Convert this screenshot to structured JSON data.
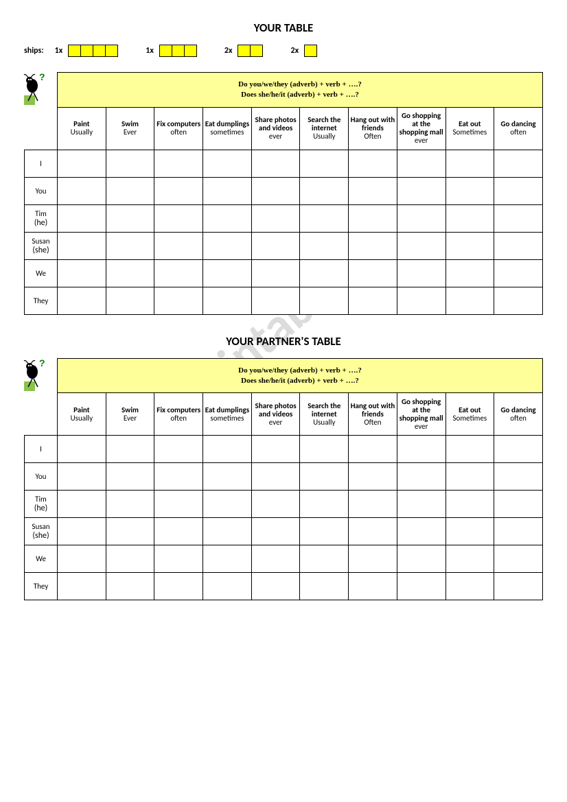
{
  "title1": "YOUR TABLE",
  "title2": "YOUR PARTNER'S TABLE",
  "ships": {
    "label": "ships:",
    "groups": [
      {
        "count": "1x",
        "size": 4
      },
      {
        "count": "1x",
        "size": 3
      },
      {
        "count": "2x",
        "size": 2
      },
      {
        "count": "2x",
        "size": 1
      }
    ]
  },
  "instruction": {
    "line1": "Do you/we/they (adverb) + verb + ….?",
    "line2": "Does she/he/it (adverb) + verb + ….?"
  },
  "columns": [
    {
      "verb": "Paint",
      "adv": "Usually"
    },
    {
      "verb": "Swim",
      "adv": "Ever"
    },
    {
      "verb": "Fix computers",
      "adv": "often"
    },
    {
      "verb": "Eat dumplings",
      "adv": "sometimes"
    },
    {
      "verb": "Share photos and videos",
      "adv": "ever"
    },
    {
      "verb": "Search the internet",
      "adv": "Usually"
    },
    {
      "verb": "Hang out with friends",
      "adv": "Often"
    },
    {
      "verb": "Go shopping at the shopping mall",
      "adv": "ever"
    },
    {
      "verb": "Eat out",
      "adv": "Sometimes"
    },
    {
      "verb": "Go dancing",
      "adv": "often"
    }
  ],
  "rows": [
    {
      "label": "I",
      "sub": ""
    },
    {
      "label": "You",
      "sub": ""
    },
    {
      "label": "Tim",
      "sub": "(he)"
    },
    {
      "label": "Susan",
      "sub": "(she)"
    },
    {
      "label": "We",
      "sub": ""
    },
    {
      "label": "They",
      "sub": ""
    }
  ],
  "watermark": "ESLprintables.com",
  "colors": {
    "ship_fill": "#ffff00",
    "instr_bg": "#ffff99",
    "border": "#000000",
    "watermark": "#dcdcdc"
  }
}
